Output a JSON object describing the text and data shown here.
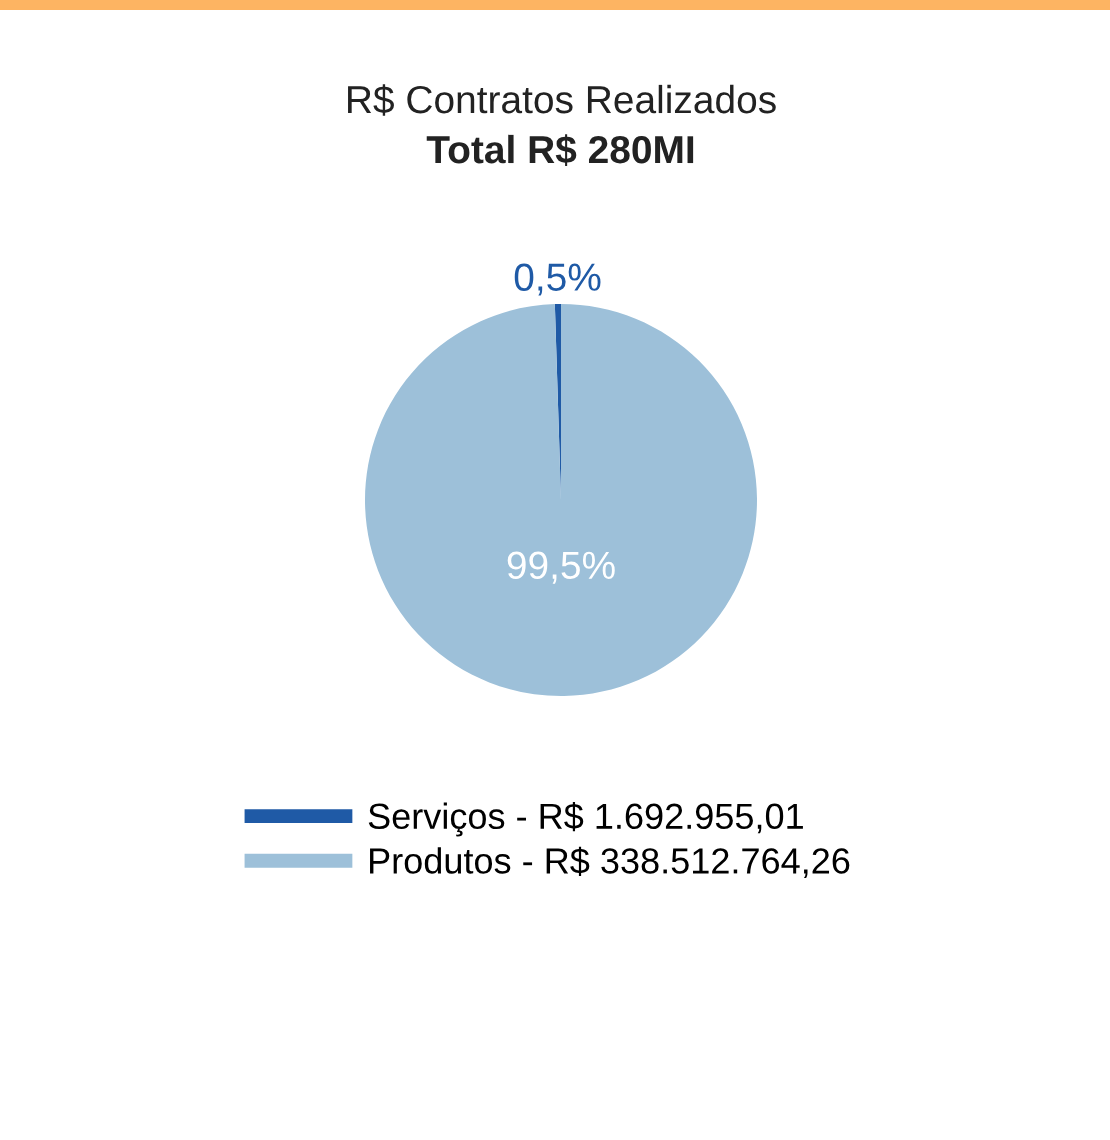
{
  "chart_data": {
    "type": "pie",
    "title": "R$ Contratos Realizados",
    "subtitle": "Total R$ 280MI",
    "categories": [
      "Serviços - R$ 1.692.955,01",
      "Produtos - R$ 338.512.764,26"
    ],
    "values": [
      0.5,
      99.5
    ],
    "colors": [
      "#1f5aa6",
      "#9dc0d9"
    ],
    "value_labels": [
      "0,5%",
      "99,5%"
    ],
    "legend": "bottom"
  }
}
